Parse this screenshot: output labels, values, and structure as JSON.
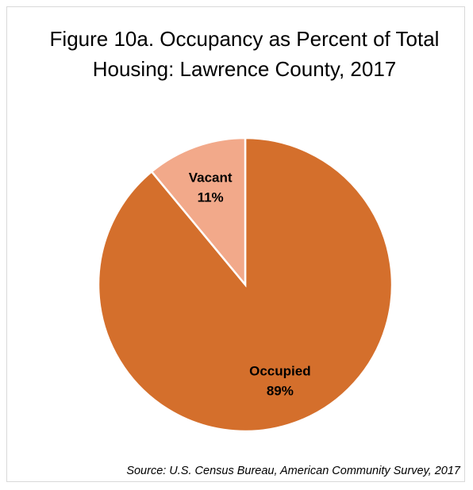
{
  "chart_data": {
    "type": "pie",
    "title": "Figure 10a. Occupancy as Percent of Total Housing: Lawrence County, 2017",
    "categories": [
      "Occupied",
      "Vacant"
    ],
    "values": [
      89,
      11
    ],
    "value_labels": [
      "89%",
      "11%"
    ],
    "colors": [
      "#d46f2c",
      "#f2a98a"
    ],
    "source": "Source: U.S. Census Bureau, American Community Survey, 2017"
  }
}
